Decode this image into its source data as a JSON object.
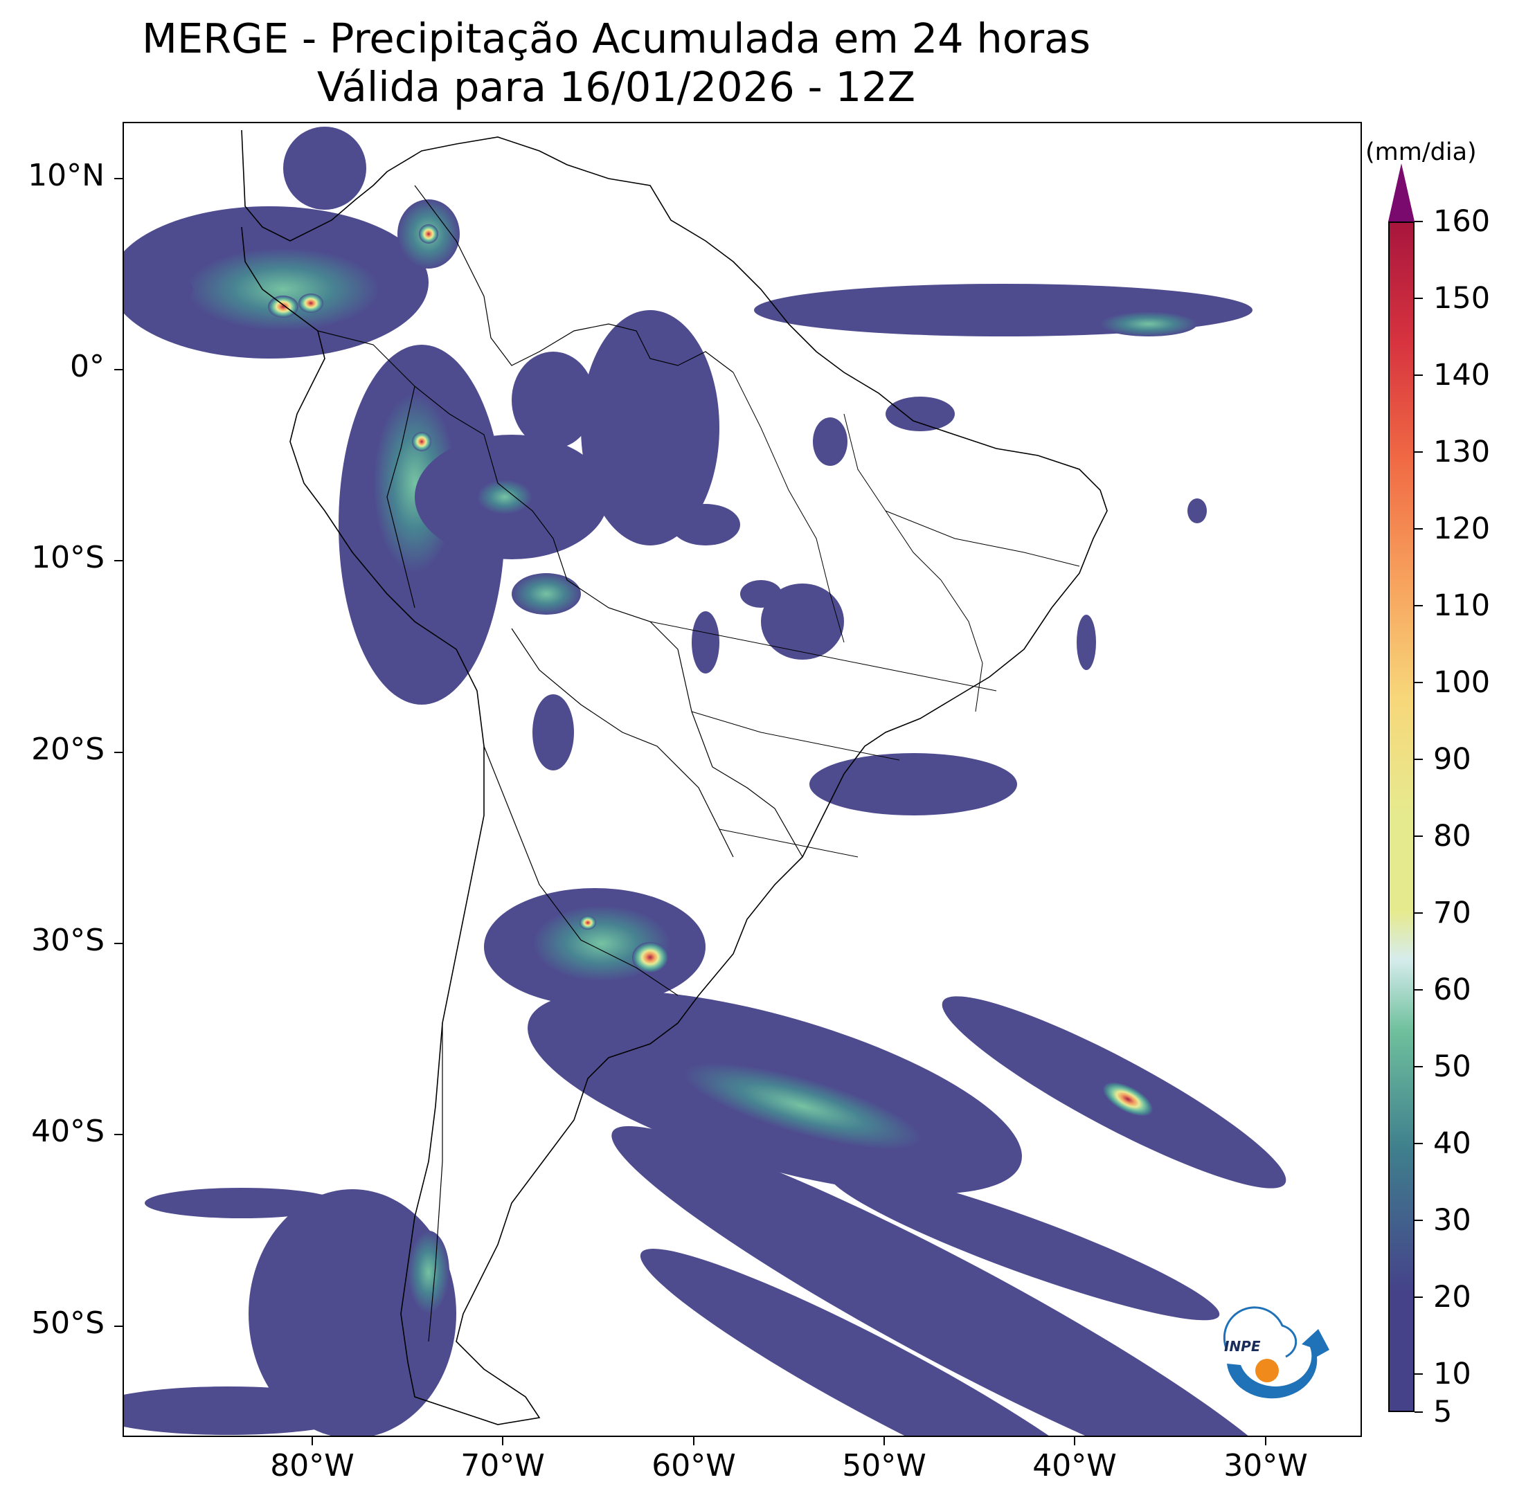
{
  "title": {
    "line1": "MERGE - Precipitação Acumulada em 24 horas",
    "line2": "Válida para 16/01/2026 - 12Z"
  },
  "map": {
    "region": "South America",
    "projection": "PlateCarree",
    "lon_range": [
      -90,
      -25
    ],
    "lat_range": [
      -56,
      13
    ],
    "lat_labels": [
      "10°N",
      "0°",
      "10°S",
      "20°S",
      "30°S",
      "40°S",
      "50°S"
    ],
    "lon_labels": [
      "80°W",
      "70°W",
      "60°W",
      "50°W",
      "40°W",
      "30°W"
    ],
    "features": [
      "coastlines",
      "country borders",
      "Brazilian state borders"
    ]
  },
  "colorbar": {
    "unit": "(mm/dia)",
    "min": 5,
    "max": 160,
    "extend": "max",
    "tick_labels": [
      "5",
      "10",
      "20",
      "30",
      "40",
      "50",
      "60",
      "70",
      "80",
      "90",
      "100",
      "110",
      "120",
      "130",
      "140",
      "150",
      "160"
    ],
    "colors": {
      "low": "#45428a",
      "mid_low": "#3f7f8d",
      "green": "#6fc09d",
      "pale": "#d6ecec",
      "yellow": "#e6ea8f",
      "orange": "#f7a15d",
      "red": "#d7333f",
      "dark_red": "#a8163d",
      "over": "#7b0a6e"
    }
  },
  "logo": {
    "name": "INPE",
    "icon": "inpe-logo-icon"
  }
}
